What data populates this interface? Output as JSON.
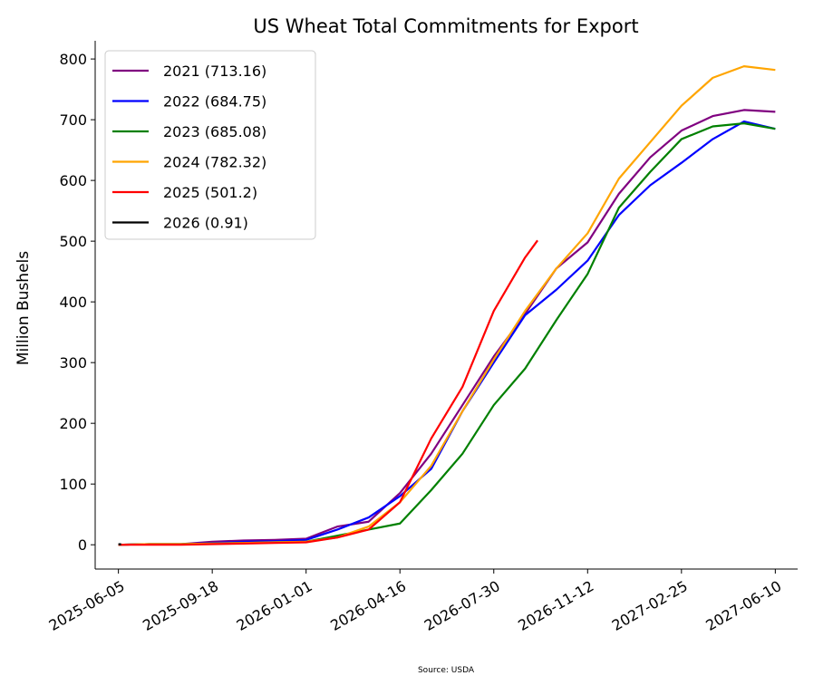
{
  "chart_data": {
    "type": "line",
    "title": "US Wheat Total Commitments for Export",
    "ylabel": "Million Bushels",
    "xlabel": "",
    "source": "Source: USDA",
    "ylim": [
      -40,
      830
    ],
    "xlim": [
      "2025-05-10",
      "2027-07-05"
    ],
    "grid": false,
    "legend_position": "upper-left",
    "x_ticks": [
      "2025-06-05",
      "2025-09-18",
      "2026-01-01",
      "2026-04-16",
      "2026-07-30",
      "2026-11-12",
      "2027-02-25",
      "2027-06-10"
    ],
    "y_ticks": [
      0,
      100,
      200,
      300,
      400,
      500,
      600,
      700,
      800
    ],
    "x": [
      "2025-06-05",
      "2025-07-10",
      "2025-08-14",
      "2025-09-18",
      "2025-10-23",
      "2025-11-27",
      "2026-01-01",
      "2026-02-05",
      "2026-03-12",
      "2026-04-16",
      "2026-05-21",
      "2026-06-25",
      "2026-07-30",
      "2026-09-03",
      "2026-10-08",
      "2026-11-12",
      "2026-12-17",
      "2027-01-21",
      "2027-02-25",
      "2027-04-01",
      "2027-05-06",
      "2027-06-10"
    ],
    "series": [
      {
        "name": "2021 (713.16)",
        "color": "#800080",
        "values": [
          0,
          1,
          1,
          5,
          7,
          8,
          10,
          30,
          38,
          85,
          150,
          230,
          310,
          380,
          455,
          498,
          578,
          638,
          682,
          706,
          716,
          713
        ]
      },
      {
        "name": "2022 (684.75)",
        "color": "#0000ff",
        "values": [
          0,
          1,
          1,
          3,
          5,
          6,
          8,
          25,
          45,
          80,
          125,
          220,
          300,
          378,
          420,
          468,
          543,
          592,
          629,
          668,
          697,
          685
        ]
      },
      {
        "name": "2023 (685.08)",
        "color": "#008000",
        "values": [
          0,
          1,
          1,
          2,
          3,
          4,
          5,
          15,
          25,
          35,
          90,
          150,
          230,
          290,
          370,
          446,
          555,
          614,
          668,
          689,
          694,
          685
        ]
      },
      {
        "name": "2024 (782.32)",
        "color": "#ffa500",
        "values": [
          0,
          1,
          1,
          2,
          3,
          4,
          5,
          12,
          30,
          70,
          130,
          220,
          305,
          385,
          455,
          513,
          603,
          663,
          723,
          769,
          788,
          782
        ]
      },
      {
        "name": "2025 (501.2)",
        "color": "#ff0000",
        "values": [
          0,
          0,
          0,
          1,
          2,
          3,
          4,
          12,
          25,
          70,
          175,
          260,
          385,
          473,
          null,
          null,
          null,
          null,
          null,
          null,
          null,
          null
        ],
        "end": {
          "date": "2026-09-17",
          "value": 501.2
        }
      },
      {
        "name": "2026 (0.91)",
        "color": "#000000",
        "values": [
          0.91,
          null,
          null,
          null,
          null,
          null,
          null,
          null,
          null,
          null,
          null,
          null,
          null,
          null,
          null,
          null,
          null,
          null,
          null,
          null,
          null,
          null
        ]
      }
    ]
  }
}
